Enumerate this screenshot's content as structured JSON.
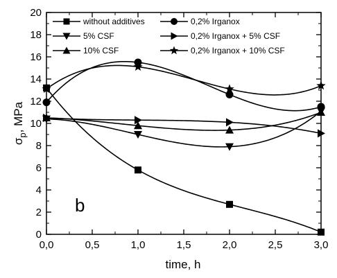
{
  "chart_data": {
    "type": "scatter",
    "title": "",
    "panel_label": "b",
    "xlabel": "time, h",
    "ylabel_symbol": "σ",
    "ylabel_subscript": "p",
    "ylabel_unit": ", MPa",
    "xlim": [
      0,
      3
    ],
    "ylim": [
      0,
      20
    ],
    "x_ticks": [
      0,
      0.5,
      1,
      1.5,
      2,
      2.5,
      3
    ],
    "x_tick_labels": [
      "0,0",
      "0,5",
      "1,0",
      "1,5",
      "2,0",
      "2,5",
      "3,0"
    ],
    "y_ticks": [
      0,
      2,
      4,
      6,
      8,
      10,
      12,
      14,
      16,
      18,
      20
    ],
    "y_tick_labels": [
      "0",
      "2",
      "4",
      "6",
      "8",
      "10",
      "12",
      "14",
      "16",
      "18",
      "20"
    ],
    "grid": false,
    "legend_position": "top",
    "x": [
      0,
      1,
      2,
      3
    ],
    "series": [
      {
        "name": "without additives",
        "marker": "square",
        "values": [
          13.2,
          5.8,
          2.7,
          0.2
        ]
      },
      {
        "name": "0,2% Irganox",
        "marker": "circle",
        "values": [
          11.9,
          15.5,
          12.6,
          11.5
        ]
      },
      {
        "name": "5% CSF",
        "marker": "triangle-down",
        "values": [
          10.4,
          9.0,
          7.9,
          11.1
        ]
      },
      {
        "name": "0,2% Irganox + 5% CSF",
        "marker": "triangle-right",
        "values": [
          10.5,
          10.3,
          10.1,
          9.1
        ]
      },
      {
        "name": "10% CSF",
        "marker": "triangle-up",
        "values": [
          10.5,
          9.8,
          9.4,
          11.0
        ]
      },
      {
        "name": "0,2% Irganox + 10% CSF",
        "marker": "star",
        "values": [
          13.1,
          15.1,
          13.1,
          13.4
        ]
      }
    ]
  }
}
